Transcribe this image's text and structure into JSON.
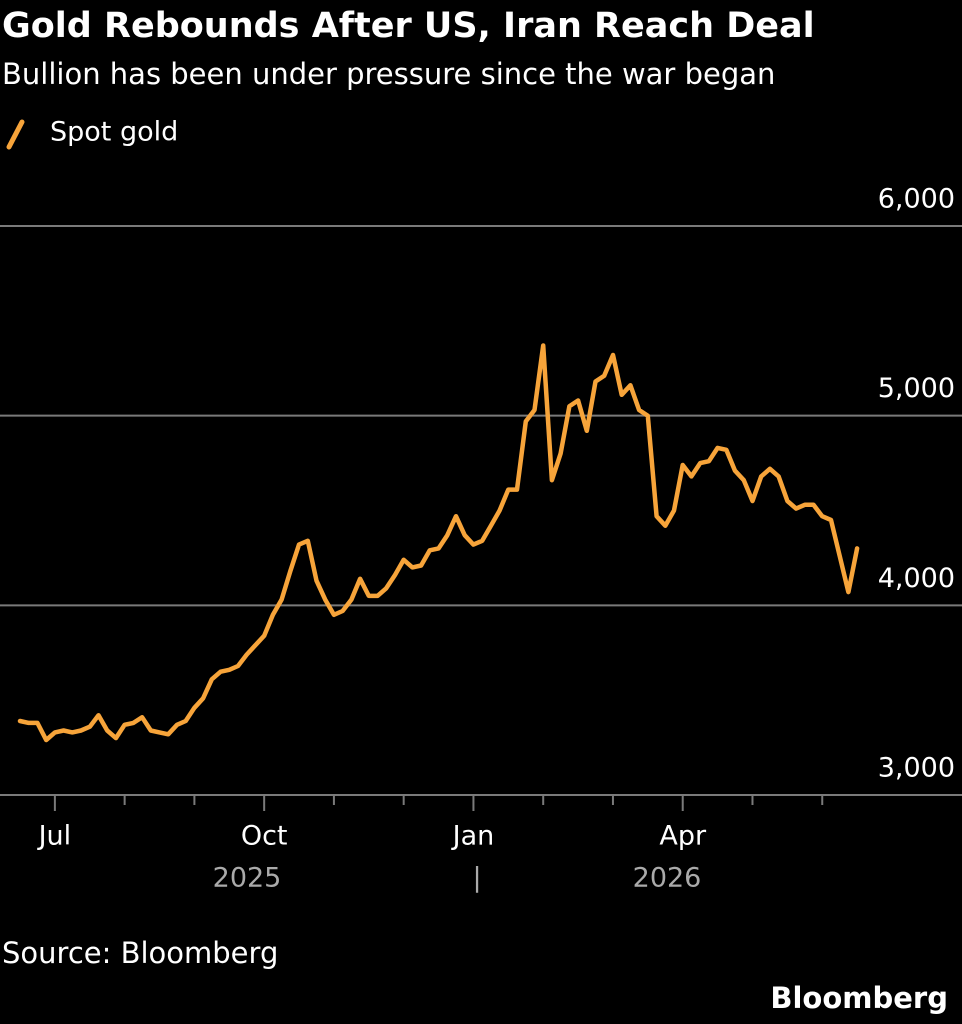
{
  "chart_data": {
    "type": "line",
    "title": "Gold Rebounds After US, Iran Reach Deal",
    "subtitle": "Bullion has been under pressure since the war began",
    "source": "Source: Bloomberg",
    "brand": "Bloomberg",
    "categories": [
      null,
      null,
      null,
      null,
      "Jul",
      null,
      null,
      null,
      null,
      null,
      null,
      null,
      null,
      null,
      null,
      null,
      null,
      null,
      null,
      null,
      null,
      null,
      null,
      null,
      null,
      null,
      null,
      null,
      "Oct",
      null,
      null,
      null,
      null,
      null,
      null,
      null,
      null,
      null,
      null,
      null,
      null,
      null,
      null,
      null,
      null,
      null,
      null,
      null,
      null,
      null,
      null,
      null,
      "Jan",
      null,
      null,
      null,
      null,
      null,
      null,
      null,
      null,
      null,
      null,
      null,
      null,
      null,
      null,
      null,
      null,
      null,
      null,
      null,
      null,
      null,
      null,
      null,
      "Apr",
      null,
      null,
      null,
      null,
      null,
      null,
      null,
      null,
      null,
      null,
      null,
      null,
      null,
      null,
      null,
      null,
      null,
      null,
      null,
      null
    ],
    "x_group_labels": [
      "2025",
      "|",
      "2026"
    ],
    "series": [
      {
        "name": "Spot gold",
        "color": "#f7a43a",
        "values": [
          3390,
          3380,
          3380,
          3290,
          3330,
          3340,
          3330,
          3340,
          3360,
          3420,
          3340,
          3300,
          3370,
          3380,
          3410,
          3340,
          3330,
          3320,
          3370,
          3390,
          3460,
          3510,
          3610,
          3650,
          3660,
          3680,
          3740,
          3790,
          3840,
          3950,
          4030,
          4180,
          4320,
          4340,
          4130,
          4030,
          3950,
          3970,
          4030,
          4140,
          4050,
          4050,
          4090,
          4160,
          4240,
          4200,
          4210,
          4290,
          4300,
          4370,
          4470,
          4370,
          4320,
          4340,
          4420,
          4500,
          4610,
          4610,
          4970,
          5030,
          5370,
          4660,
          4800,
          5050,
          5080,
          4920,
          5180,
          5210,
          5320,
          5110,
          5160,
          5030,
          5000,
          4470,
          4420,
          4500,
          4740,
          4680,
          4750,
          4760,
          4830,
          4820,
          4710,
          4660,
          4550,
          4680,
          4720,
          4680,
          4550,
          4510,
          4530,
          4530,
          4470,
          4450,
          4260,
          4070,
          4300
        ]
      }
    ],
    "ylim": [
      3000,
      6000
    ],
    "yticks": [
      {
        "value": 3000,
        "label": "3,000"
      },
      {
        "value": 4000,
        "label": "4,000"
      },
      {
        "value": 5000,
        "label": "5,000"
      },
      {
        "value": 6000,
        "label": "6,000"
      }
    ],
    "grid": true
  }
}
